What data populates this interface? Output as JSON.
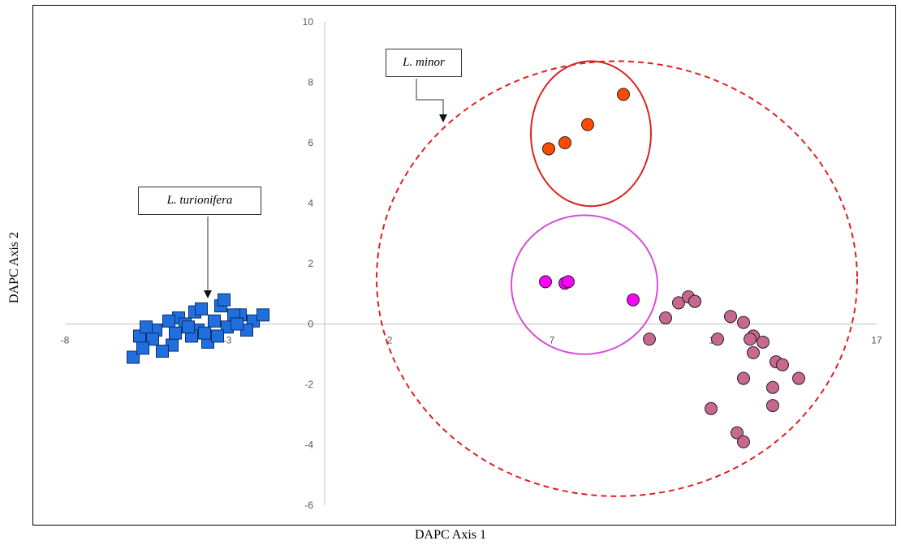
{
  "chart_data": {
    "type": "scatter",
    "title": "",
    "xlabel": "DAPC Axis 1",
    "ylabel": "DAPC Axis 2",
    "xlim": [
      -8,
      17
    ],
    "ylim": [
      -6,
      10
    ],
    "x_ticks": [
      "-8",
      "-3",
      "2",
      "7",
      "12",
      "17"
    ],
    "y_ticks": [
      "-6",
      "-4",
      "-2",
      "0",
      "2",
      "4",
      "6",
      "8",
      "10"
    ],
    "grid": false,
    "series": [
      {
        "marker": "square",
        "color": "#1f6fe0",
        "points": [
          [
            -4.5,
            0.2
          ],
          [
            -4.0,
            0.4
          ],
          [
            -3.2,
            0.6
          ],
          [
            -2.6,
            0.3
          ],
          [
            -2.2,
            0.1
          ],
          [
            -5.2,
            -0.2
          ],
          [
            -5.7,
            -0.4
          ],
          [
            -4.7,
            -0.7
          ],
          [
            -5.0,
            -0.9
          ],
          [
            -3.6,
            -0.6
          ],
          [
            -4.3,
            0.0
          ],
          [
            -3.0,
            -0.1
          ],
          [
            -2.8,
            0.3
          ],
          [
            -3.9,
            -0.2
          ],
          [
            -5.5,
            -0.1
          ],
          [
            -4.1,
            -0.4
          ],
          [
            -3.4,
            0.1
          ],
          [
            -3.7,
            -0.3
          ],
          [
            -4.8,
            0.1
          ],
          [
            -5.3,
            -0.5
          ],
          [
            -1.9,
            0.3
          ],
          [
            -2.4,
            -0.2
          ],
          [
            -3.1,
            0.8
          ],
          [
            -4.6,
            -0.3
          ],
          [
            -5.9,
            -1.1
          ],
          [
            -5.6,
            -0.8
          ],
          [
            -3.8,
            0.5
          ],
          [
            -4.2,
            -0.1
          ],
          [
            -3.3,
            -0.4
          ],
          [
            -2.7,
            0.0
          ]
        ]
      },
      {
        "marker": "circle",
        "color": "#ff4a00",
        "points": [
          [
            6.9,
            5.8
          ],
          [
            7.4,
            6.0
          ],
          [
            8.1,
            6.6
          ],
          [
            9.2,
            7.6
          ]
        ]
      },
      {
        "marker": "circle",
        "color": "#ff00ff",
        "points": [
          [
            6.8,
            1.4
          ],
          [
            7.4,
            1.35
          ],
          [
            7.5,
            1.4
          ],
          [
            9.5,
            0.8
          ]
        ]
      },
      {
        "marker": "circle",
        "color": "#c8678f",
        "points": [
          [
            10.5,
            0.2
          ],
          [
            10.9,
            0.7
          ],
          [
            11.2,
            0.9
          ],
          [
            11.4,
            0.75
          ],
          [
            11.4,
            0.75
          ],
          [
            12.5,
            0.25
          ],
          [
            12.9,
            0.05
          ],
          [
            13.2,
            -0.4
          ],
          [
            13.1,
            -0.5
          ],
          [
            13.5,
            -0.6
          ],
          [
            12.1,
            -0.5
          ],
          [
            13.2,
            -0.95
          ],
          [
            10.0,
            -0.5
          ],
          [
            13.9,
            -1.25
          ],
          [
            14.1,
            -1.35
          ],
          [
            12.9,
            -1.8
          ],
          [
            13.8,
            -2.1
          ],
          [
            14.6,
            -1.8
          ],
          [
            13.8,
            -2.7
          ],
          [
            11.9,
            -2.8
          ],
          [
            12.7,
            -3.6
          ],
          [
            12.9,
            -3.9
          ]
        ]
      }
    ],
    "groups": [
      {
        "label": "",
        "cx": 8.2,
        "cy": 6.3,
        "rx": 1.85,
        "ry": 2.4,
        "color": "#d72424",
        "style": "solid"
      },
      {
        "label": "",
        "cx": 8.0,
        "cy": 1.3,
        "rx": 2.25,
        "ry": 2.3,
        "color": "#d64fd6",
        "style": "solid"
      },
      {
        "label": "L. minor",
        "cx": 9.0,
        "cy": 1.5,
        "rx": 7.4,
        "ry": 7.2,
        "color": "#e02020",
        "style": "dashed"
      }
    ],
    "annotations": [
      {
        "text": "L. minor",
        "target": [
          3.8,
          6.8
        ]
      },
      {
        "text": "L. turionifera",
        "target": [
          -3.4,
          0.8
        ]
      }
    ]
  }
}
